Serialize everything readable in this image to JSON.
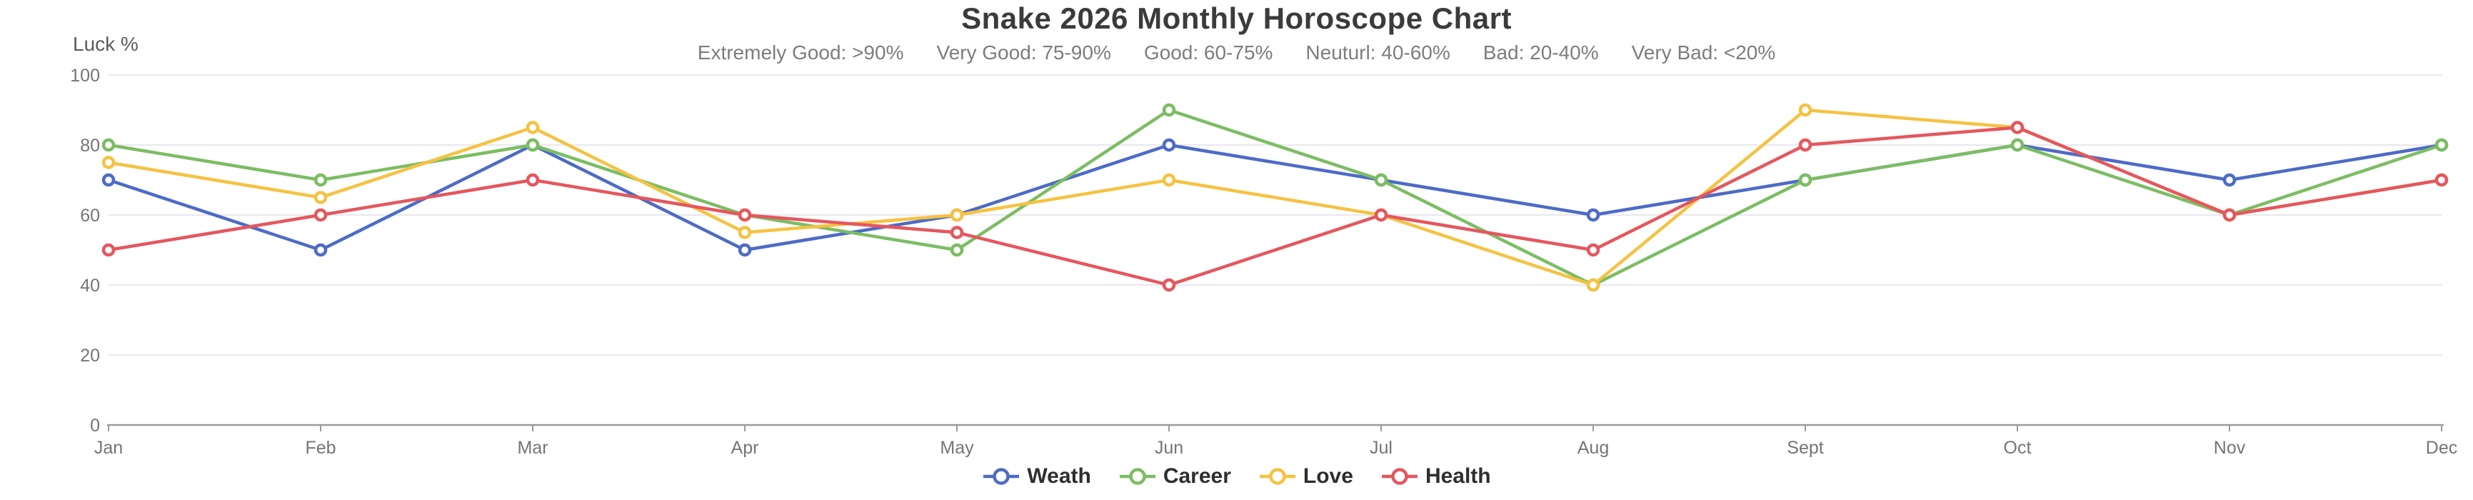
{
  "page": {
    "title": "Snake 2026 Monthly Horoscope Chart"
  },
  "subtitle_items": [
    "Extremely Good: >90%",
    "Very Good: 75-90%",
    "Good: 60-75%",
    "Neuturl: 40-60%",
    "Bad: 20-40%",
    "Very Bad: <20%"
  ],
  "y_axis_title": "Luck %",
  "chart_data": {
    "type": "line",
    "title": "Snake 2026 Monthly Horoscope Chart",
    "ylabel": "Luck %",
    "ylim": [
      0,
      100
    ],
    "yticks": [
      0,
      20,
      40,
      60,
      80,
      100
    ],
    "grid": true,
    "legend_position": "bottom",
    "categories": [
      "Jan",
      "Feb",
      "Mar",
      "Apr",
      "May",
      "Jun",
      "Jul",
      "Aug",
      "Sept",
      "Oct",
      "Nov",
      "Dec"
    ],
    "series": [
      {
        "name": "Weath",
        "color": "#4d6bc6",
        "values": [
          70,
          50,
          80,
          50,
          60,
          80,
          70,
          60,
          70,
          80,
          70,
          80
        ]
      },
      {
        "name": "Career",
        "color": "#7cbd63",
        "values": [
          80,
          70,
          80,
          60,
          50,
          90,
          70,
          40,
          70,
          80,
          60,
          80
        ]
      },
      {
        "name": "Love",
        "color": "#f5c242",
        "values": [
          75,
          65,
          85,
          55,
          60,
          70,
          60,
          40,
          90,
          85,
          60,
          70
        ]
      },
      {
        "name": "Health",
        "color": "#e4575e",
        "values": [
          50,
          60,
          70,
          60,
          55,
          40,
          60,
          50,
          80,
          85,
          60,
          70
        ]
      }
    ]
  },
  "colors": {
    "axis": "#9a9a9a",
    "grid": "#e9e9ee",
    "tick_text": "#757575",
    "legend_text": "#2e2e2e"
  }
}
